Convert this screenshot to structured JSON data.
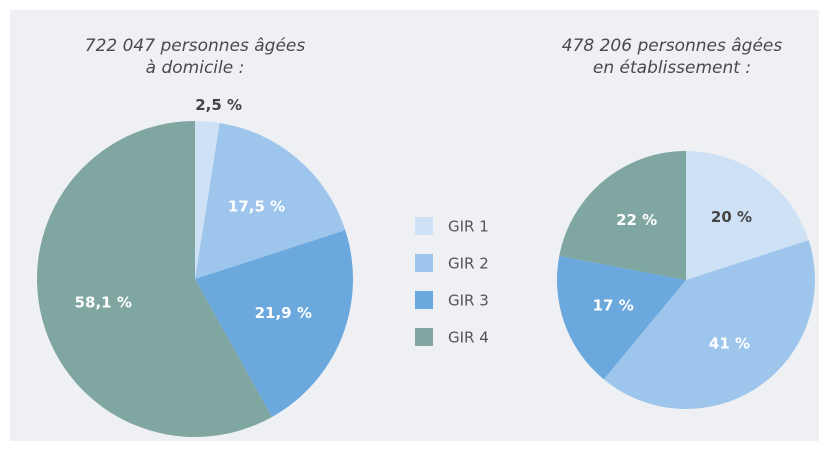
{
  "legend": {
    "labels": [
      "GIR 1",
      "GIR 2",
      "GIR 3",
      "GIR 4"
    ],
    "colors": [
      "#cfe2f5",
      "#9ec6ec",
      "#6aa8dd",
      "#7fa6a0"
    ]
  },
  "chart_data": [
    {
      "type": "pie",
      "title": [
        "722 047 personnes âgées",
        "à domicile  :"
      ],
      "values": [
        2.5,
        17.5,
        21.9,
        58.1
      ],
      "value_labels": [
        "2,5 %",
        "17,5 %",
        "21,9 %",
        "58,1 %"
      ]
    },
    {
      "type": "pie",
      "title": [
        "478 206 personnes âgées",
        "en établissement  :"
      ],
      "values": [
        20,
        41,
        17,
        22
      ],
      "value_labels": [
        "20 %",
        "41 %",
        "17 %",
        "22 %"
      ]
    }
  ]
}
